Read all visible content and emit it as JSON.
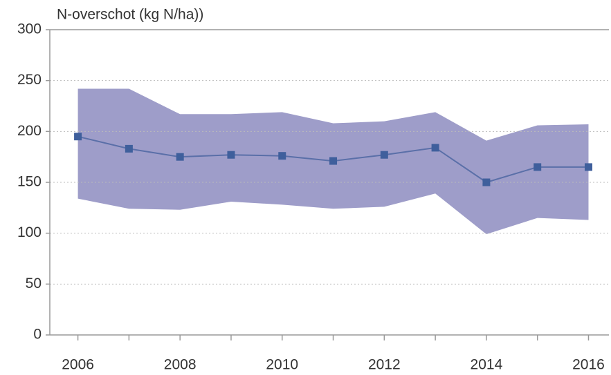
{
  "chart_data": {
    "type": "line",
    "y_axis_label": "N-overschot (kg N/ha))",
    "x": [
      2006,
      2007,
      2008,
      2009,
      2010,
      2011,
      2012,
      2013,
      2014,
      2015,
      2016
    ],
    "values": [
      195,
      183,
      175,
      177,
      176,
      171,
      177,
      184,
      150,
      165,
      165
    ],
    "upper": [
      242,
      242,
      217,
      217,
      219,
      208,
      210,
      219,
      191,
      206,
      207
    ],
    "lower": [
      134,
      124,
      123,
      131,
      128,
      124,
      126,
      139,
      99,
      115,
      113
    ],
    "line_color": "#5a6fa8",
    "marker_color": "#3f5f9c",
    "band_color": "#9e9dc9",
    "xlim": [
      2005.45,
      2016.4
    ],
    "xticks": [
      2006,
      2008,
      2010,
      2012,
      2014,
      2016
    ],
    "xminor_ticks": [
      2007,
      2009,
      2011,
      2013,
      2015
    ],
    "ylim": [
      0,
      300
    ],
    "yticks": [
      0,
      50,
      100,
      150,
      200,
      250,
      300
    ],
    "grid": true
  }
}
